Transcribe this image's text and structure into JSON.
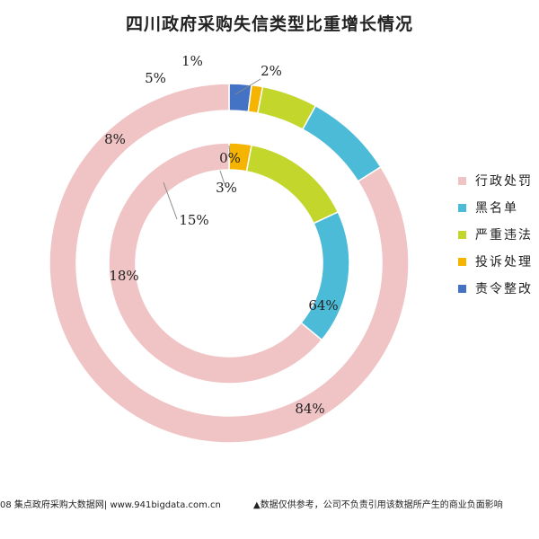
{
  "chart_data": {
    "type": "donut",
    "title": "四川政府采购失信类型比重增长情况",
    "categories": [
      "行政处罚",
      "黑名单",
      "严重违法",
      "投诉处理",
      "责令整改"
    ],
    "colors": [
      "#f0c4c4",
      "#4bbbd8",
      "#c3d62b",
      "#f5b400",
      "#4472c4"
    ],
    "rings": [
      {
        "ring": "outer",
        "values": [
          84,
          8,
          5,
          1,
          2
        ],
        "labels": [
          "84%",
          "8%",
          "5%",
          "1%",
          "2%"
        ]
      },
      {
        "ring": "inner",
        "values": [
          64,
          18,
          15,
          3,
          0
        ],
        "labels": [
          "64%",
          "18%",
          "15%",
          "3%",
          "0%"
        ]
      }
    ],
    "legend_position": "right"
  },
  "footer": {
    "left": "08 集点政府采购大数据网| www.941bigdata.com.cn",
    "right": "▲数据仅供参考，公司不负责引用该数据所产生的商业负面影响"
  }
}
